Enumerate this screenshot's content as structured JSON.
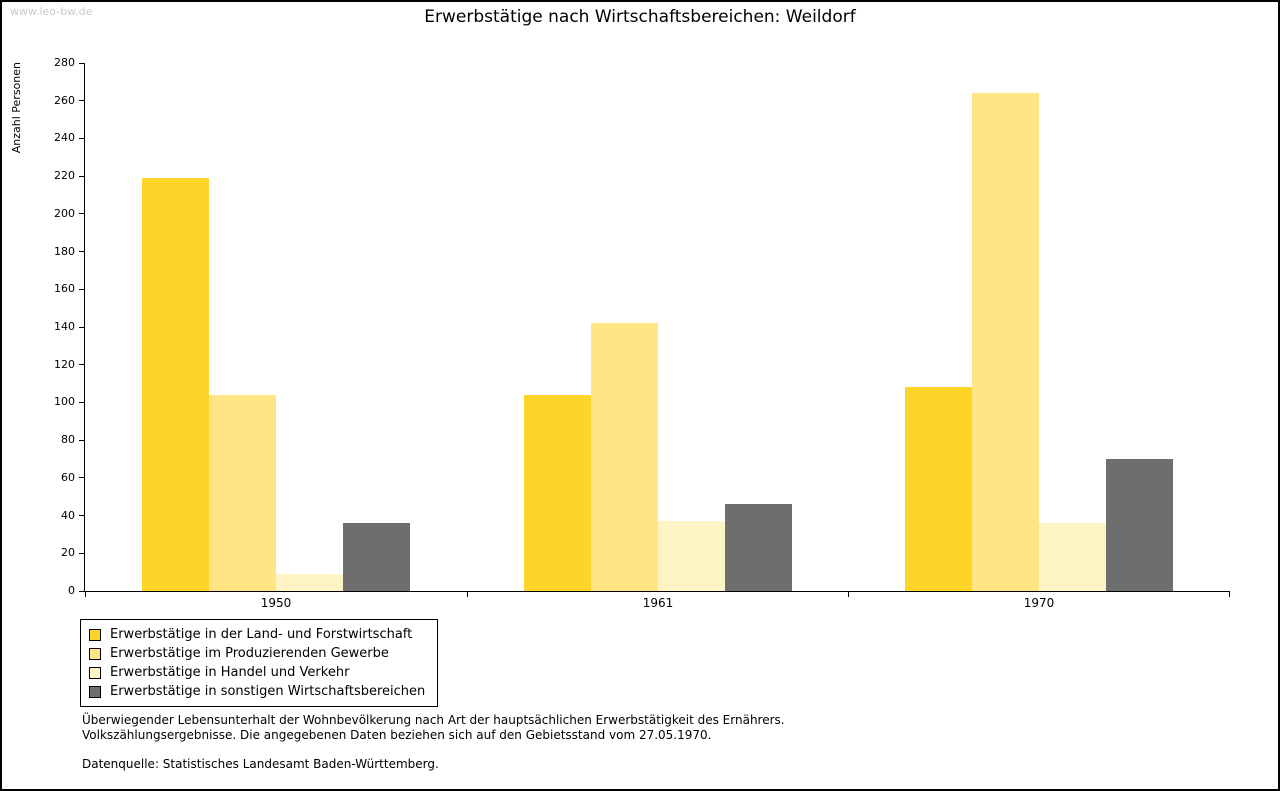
{
  "page": {
    "watermark": "www.leo-bw.de"
  },
  "chart_data": {
    "type": "bar",
    "title": "Erwerbstätige nach Wirtschaftsbereichen: Weildorf",
    "ylabel": "Anzahl Personen",
    "xlabel": "",
    "categories": [
      "1950",
      "1961",
      "1970"
    ],
    "series": [
      {
        "name": "Erwerbstätige in der Land- und Forstwirtschaft",
        "color": "#FFD428",
        "values": [
          219,
          104,
          108
        ]
      },
      {
        "name": "Erwerbstätige im Produzierenden Gewerbe",
        "color": "#FFE584",
        "values": [
          104,
          142,
          264
        ]
      },
      {
        "name": "Erwerbstätige in Handel und Verkehr",
        "color": "#FFF4C6",
        "values": [
          9,
          37,
          36
        ]
      },
      {
        "name": "Erwerbstätige in sonstigen Wirtschaftsbereichen",
        "color": "#6E6E6E",
        "values": [
          36,
          46,
          70
        ]
      }
    ],
    "ylim": [
      0,
      280
    ],
    "ytick_step": 20,
    "grid": false,
    "legend_position": "bottom-left"
  },
  "footnotes": {
    "line1": "Überwiegender Lebensunterhalt der Wohnbevölkerung nach Art der hauptsächlichen Erwerbstätigkeit des Ernährers.",
    "line2": "Volkszählungsergebnisse. Die angegebenen Daten beziehen sich auf den Gebietsstand vom 27.05.1970.",
    "source": "Datenquelle: Statistisches Landesamt Baden-Württemberg."
  }
}
